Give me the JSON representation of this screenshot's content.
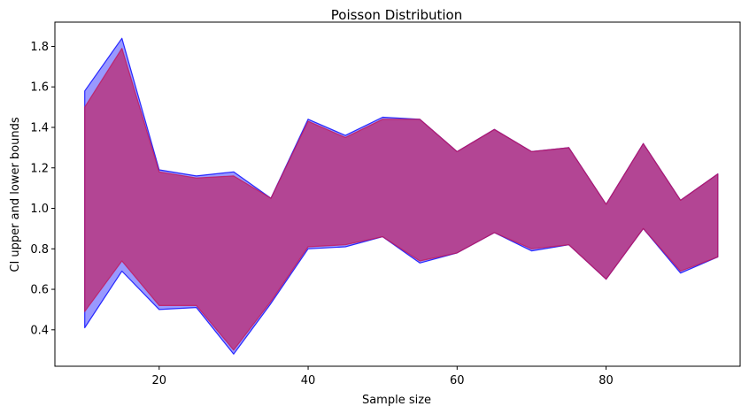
{
  "chart_data": {
    "type": "area",
    "title": "Poisson Distribution",
    "xlabel": "Sample size",
    "ylabel": "CI upper and lower bounds",
    "xlim": [
      6,
      98
    ],
    "ylim": [
      0.22,
      1.92
    ],
    "xticks": [
      20,
      40,
      60,
      80
    ],
    "yticks": [
      0.4,
      0.6,
      0.8,
      1.0,
      1.2,
      1.4,
      1.6,
      1.8
    ],
    "grid": false,
    "x": [
      10,
      15,
      20,
      25,
      30,
      35,
      40,
      45,
      50,
      55,
      60,
      65,
      70,
      75,
      80,
      85,
      90,
      95
    ],
    "series": [
      {
        "color": "#0000ff",
        "fill_opacity": 0.4,
        "lower": [
          0.41,
          0.69,
          0.5,
          0.51,
          0.28,
          0.53,
          0.8,
          0.81,
          0.86,
          0.73,
          0.78,
          0.88,
          0.79,
          0.82,
          0.65,
          0.9,
          0.68,
          0.76
        ],
        "upper": [
          1.58,
          1.84,
          1.19,
          1.16,
          1.18,
          1.05,
          1.44,
          1.36,
          1.45,
          1.44,
          1.28,
          1.39,
          1.28,
          1.3,
          1.02,
          1.32,
          1.04,
          1.17
        ]
      },
      {
        "color": "#c2185b",
        "fill_opacity": 0.65,
        "lower": [
          0.49,
          0.74,
          0.52,
          0.52,
          0.3,
          0.54,
          0.81,
          0.82,
          0.86,
          0.74,
          0.78,
          0.88,
          0.8,
          0.82,
          0.65,
          0.9,
          0.69,
          0.76
        ],
        "upper": [
          1.5,
          1.79,
          1.18,
          1.15,
          1.16,
          1.05,
          1.43,
          1.35,
          1.44,
          1.44,
          1.28,
          1.39,
          1.28,
          1.3,
          1.02,
          1.32,
          1.04,
          1.17
        ]
      }
    ]
  }
}
